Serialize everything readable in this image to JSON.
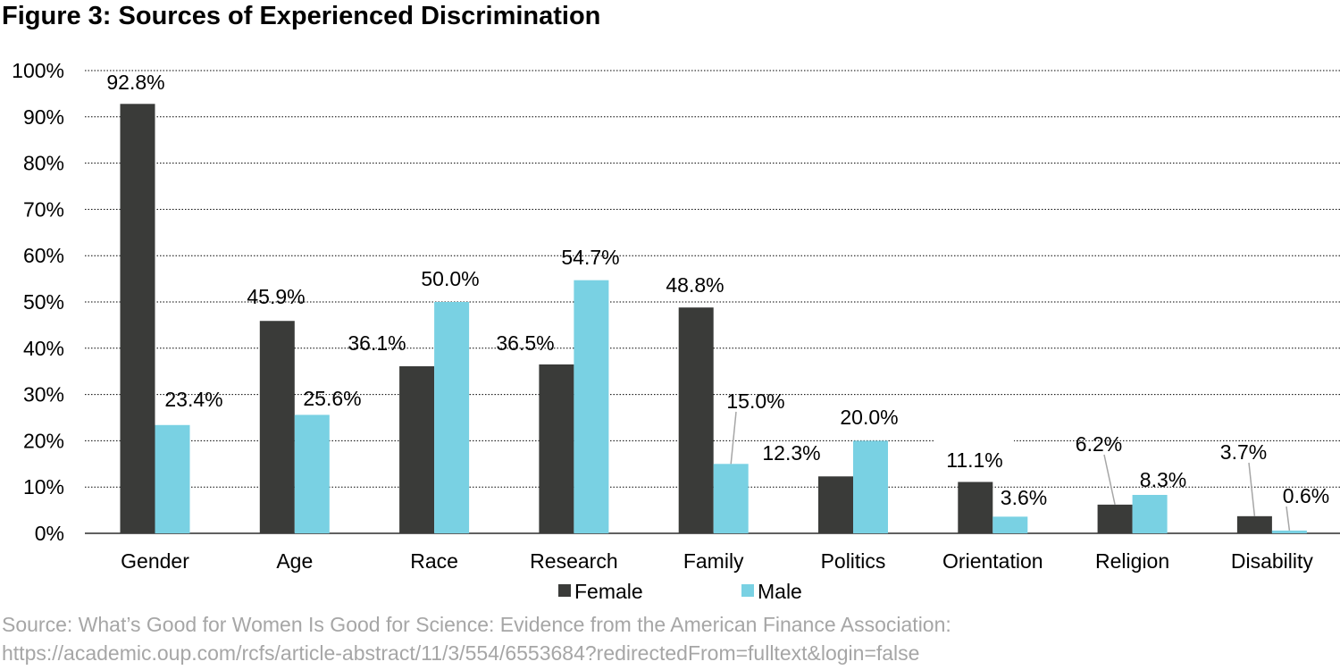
{
  "title": "Figure 3: Sources of Experienced Discrimination",
  "source": {
    "line1": "Source: What’s Good for Women Is Good for Science: Evidence from the American Finance Association:",
    "line2": "https://academic.oup.com/rcfs/article-abstract/11/3/554/6553684?redirectedFrom=fulltext&login=false"
  },
  "colors": {
    "Female": "#3a3b39",
    "Male": "#79d1e3",
    "grid": "#000000",
    "label_line": "#a6a6a6"
  },
  "chart_data": {
    "type": "bar",
    "categories": [
      "Gender",
      "Age",
      "Race",
      "Research",
      "Family",
      "Politics",
      "Orientation",
      "Religion",
      "Disability"
    ],
    "series": [
      {
        "name": "Female",
        "values": [
          92.8,
          45.9,
          36.1,
          36.5,
          48.8,
          12.3,
          11.1,
          6.2,
          3.7
        ],
        "labels": [
          "92.8%",
          "45.9%",
          "36.1%",
          "36.5%",
          "48.8%",
          "12.3%",
          "11.1%",
          "6.2%",
          "3.7%"
        ]
      },
      {
        "name": "Male",
        "values": [
          23.4,
          25.6,
          50.0,
          54.7,
          15.0,
          20.0,
          3.6,
          8.3,
          0.6
        ],
        "labels": [
          "23.4%",
          "25.6%",
          "50.0%",
          "54.7%",
          "15.0%",
          "20.0%",
          "3.6%",
          "8.3%",
          "0.6%"
        ]
      }
    ],
    "ylim": [
      0,
      100
    ],
    "yticks": [
      0,
      10,
      20,
      30,
      40,
      50,
      60,
      70,
      80,
      90,
      100
    ],
    "ytick_labels": [
      "0%",
      "10%",
      "20%",
      "30%",
      "40%",
      "50%",
      "60%",
      "70%",
      "80%",
      "90%",
      "100%"
    ],
    "grid": "dotted horizontal",
    "legend": "bottom-center"
  }
}
